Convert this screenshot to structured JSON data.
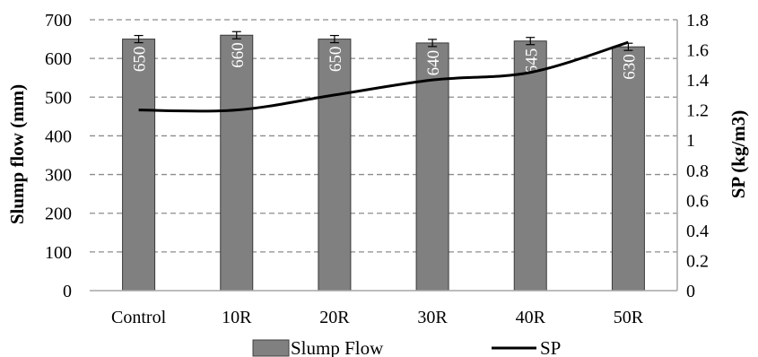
{
  "chart_data": {
    "type": "bar",
    "categories": [
      "Control",
      "10R",
      "20R",
      "30R",
      "40R",
      "50R"
    ],
    "series": [
      {
        "name": "Slump Flow",
        "type": "bar",
        "axis": "left",
        "values": [
          650,
          660,
          650,
          640,
          645,
          630
        ],
        "data_labels": [
          "650",
          "660",
          "650",
          "640",
          "645",
          "630"
        ],
        "color": "#808080"
      },
      {
        "name": "SP",
        "type": "line",
        "axis": "right",
        "values": [
          1.2,
          1.2,
          1.3,
          1.4,
          1.45,
          1.65
        ],
        "color": "#000000"
      }
    ],
    "ylabel": "Slump flow (mm)",
    "y2label": "SP (kg/m3)",
    "ylim": [
      0,
      700
    ],
    "y2lim": [
      0,
      1.8
    ],
    "yticks": [
      "0",
      "100",
      "200",
      "300",
      "400",
      "500",
      "600",
      "700"
    ],
    "y2ticks": [
      "0",
      "0.2",
      "0.4",
      "0.6",
      "0.8",
      "1",
      "1.2",
      "1.4",
      "1.6",
      "1.8"
    ],
    "grid": "dashed horizontal",
    "legend_position": "bottom"
  }
}
